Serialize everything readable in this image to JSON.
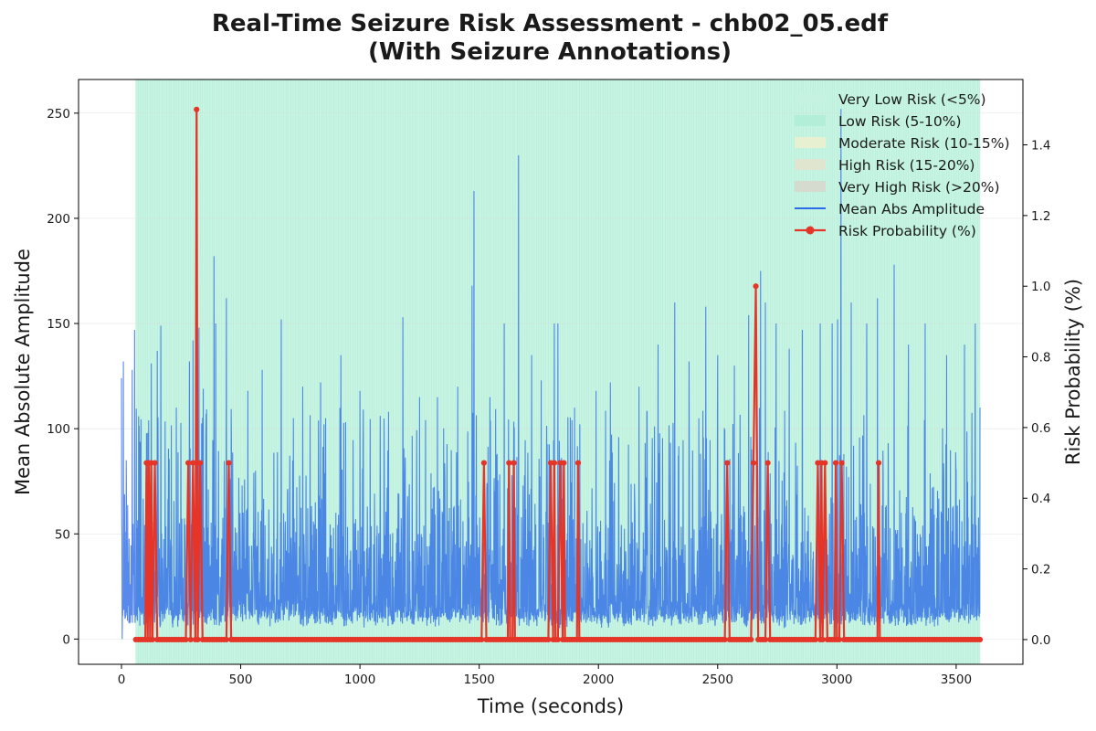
{
  "chart_data": {
    "type": "line",
    "title_line1": "Real-Time Seizure Risk Assessment - chb02_05.edf",
    "title_line2": "(With Seizure Annotations)",
    "xlabel": "Time (seconds)",
    "ylabel_left": "Mean Absolute Amplitude",
    "ylabel_right": "Risk Probability (%)",
    "xlim": [
      -180,
      3780
    ],
    "ylim_left": [
      -12,
      266
    ],
    "ylim_right": [
      -0.07,
      1.585
    ],
    "x_ticks": [
      0,
      500,
      1000,
      1500,
      2000,
      2500,
      3000,
      3500
    ],
    "y_left_ticks": [
      0,
      50,
      100,
      150,
      200,
      250
    ],
    "y_right_ticks": [
      "0.0",
      "0.2",
      "0.4",
      "0.6",
      "0.8",
      "1.0",
      "1.2",
      "1.4"
    ],
    "grid": true,
    "legend_position": "top-right",
    "legend": [
      {
        "label": "Very Low Risk (<5%)",
        "kind": "patch",
        "color": "#c6f2e2"
      },
      {
        "label": "Low Risk (5-10%)",
        "kind": "patch",
        "color": "#b2eed8"
      },
      {
        "label": "Moderate Risk (10-15%)",
        "kind": "patch",
        "color": "#e7f0d0"
      },
      {
        "label": "High Risk (15-20%)",
        "kind": "patch",
        "color": "#dfe5cf"
      },
      {
        "label": "Very High Risk (>20%)",
        "kind": "patch",
        "color": "#d6dbd0"
      },
      {
        "label": "Mean Abs Amplitude",
        "kind": "line",
        "color": "#2e6be6"
      },
      {
        "label": "Risk Probability (%)",
        "kind": "marker-line",
        "color": "#e53528"
      }
    ],
    "risk_band": {
      "label": "Very Low Risk (<5%)",
      "x_start": 60,
      "x_end": 3600,
      "color": "#b6f0d9"
    },
    "amplitude_series": {
      "name": "Mean Abs Amplitude",
      "color": "#2e6be6",
      "duration_s": 3600,
      "typical_range": [
        5,
        40
      ],
      "peaks": [
        {
          "x": 0,
          "y": 124
        },
        {
          "x": 8,
          "y": 132
        },
        {
          "x": 20,
          "y": 85
        },
        {
          "x": 45,
          "y": 128
        },
        {
          "x": 55,
          "y": 147
        },
        {
          "x": 110,
          "y": 98
        },
        {
          "x": 125,
          "y": 131
        },
        {
          "x": 150,
          "y": 137
        },
        {
          "x": 165,
          "y": 149
        },
        {
          "x": 230,
          "y": 110
        },
        {
          "x": 285,
          "y": 132
        },
        {
          "x": 300,
          "y": 142
        },
        {
          "x": 312,
          "y": 155
        },
        {
          "x": 325,
          "y": 148
        },
        {
          "x": 343,
          "y": 119
        },
        {
          "x": 388,
          "y": 182
        },
        {
          "x": 395,
          "y": 150
        },
        {
          "x": 440,
          "y": 162
        },
        {
          "x": 530,
          "y": 118
        },
        {
          "x": 590,
          "y": 128
        },
        {
          "x": 670,
          "y": 152
        },
        {
          "x": 760,
          "y": 120
        },
        {
          "x": 835,
          "y": 122
        },
        {
          "x": 920,
          "y": 135
        },
        {
          "x": 1000,
          "y": 118
        },
        {
          "x": 1120,
          "y": 108
        },
        {
          "x": 1180,
          "y": 153
        },
        {
          "x": 1250,
          "y": 115
        },
        {
          "x": 1325,
          "y": 115
        },
        {
          "x": 1410,
          "y": 120
        },
        {
          "x": 1470,
          "y": 168
        },
        {
          "x": 1478,
          "y": 213
        },
        {
          "x": 1545,
          "y": 115
        },
        {
          "x": 1605,
          "y": 150
        },
        {
          "x": 1665,
          "y": 230
        },
        {
          "x": 1720,
          "y": 135
        },
        {
          "x": 1760,
          "y": 123
        },
        {
          "x": 1815,
          "y": 150
        },
        {
          "x": 1830,
          "y": 150
        },
        {
          "x": 1900,
          "y": 110
        },
        {
          "x": 1990,
          "y": 118
        },
        {
          "x": 2050,
          "y": 122
        },
        {
          "x": 2170,
          "y": 120
        },
        {
          "x": 2250,
          "y": 140
        },
        {
          "x": 2320,
          "y": 160
        },
        {
          "x": 2380,
          "y": 132
        },
        {
          "x": 2450,
          "y": 158
        },
        {
          "x": 2500,
          "y": 135
        },
        {
          "x": 2570,
          "y": 130
        },
        {
          "x": 2630,
          "y": 154
        },
        {
          "x": 2680,
          "y": 175
        },
        {
          "x": 2700,
          "y": 160
        },
        {
          "x": 2745,
          "y": 150
        },
        {
          "x": 2800,
          "y": 138
        },
        {
          "x": 2855,
          "y": 147
        },
        {
          "x": 2930,
          "y": 150
        },
        {
          "x": 2980,
          "y": 150
        },
        {
          "x": 3003,
          "y": 152
        },
        {
          "x": 3017,
          "y": 252
        },
        {
          "x": 3060,
          "y": 160
        },
        {
          "x": 3125,
          "y": 150
        },
        {
          "x": 3170,
          "y": 162
        },
        {
          "x": 3240,
          "y": 178
        },
        {
          "x": 3300,
          "y": 140
        },
        {
          "x": 3370,
          "y": 150
        },
        {
          "x": 3460,
          "y": 135
        },
        {
          "x": 3535,
          "y": 140
        },
        {
          "x": 3580,
          "y": 150
        },
        {
          "x": 3600,
          "y": 110
        }
      ]
    },
    "risk_series": {
      "name": "Risk Probability (%)",
      "color": "#e53528",
      "start_x": 60,
      "end_x": 3600,
      "base_value": 0.0,
      "spikes": [
        {
          "x": 105,
          "y": 0.5
        },
        {
          "x": 115,
          "y": 0.5
        },
        {
          "x": 125,
          "y": 0.5
        },
        {
          "x": 140,
          "y": 0.5
        },
        {
          "x": 280,
          "y": 0.5
        },
        {
          "x": 300,
          "y": 0.5
        },
        {
          "x": 315,
          "y": 1.5
        },
        {
          "x": 330,
          "y": 0.5
        },
        {
          "x": 450,
          "y": 0.5
        },
        {
          "x": 1520,
          "y": 0.5
        },
        {
          "x": 1625,
          "y": 0.5
        },
        {
          "x": 1645,
          "y": 0.5
        },
        {
          "x": 1800,
          "y": 0.5
        },
        {
          "x": 1815,
          "y": 0.5
        },
        {
          "x": 1840,
          "y": 0.5
        },
        {
          "x": 1855,
          "y": 0.5
        },
        {
          "x": 1915,
          "y": 0.5
        },
        {
          "x": 2540,
          "y": 0.5
        },
        {
          "x": 2650,
          "y": 0.5
        },
        {
          "x": 2660,
          "y": 1.0
        },
        {
          "x": 2710,
          "y": 0.5
        },
        {
          "x": 2920,
          "y": 0.5
        },
        {
          "x": 2935,
          "y": 0.5
        },
        {
          "x": 2950,
          "y": 0.5
        },
        {
          "x": 2995,
          "y": 0.5
        },
        {
          "x": 3020,
          "y": 0.5
        },
        {
          "x": 3175,
          "y": 0.5
        }
      ]
    }
  }
}
